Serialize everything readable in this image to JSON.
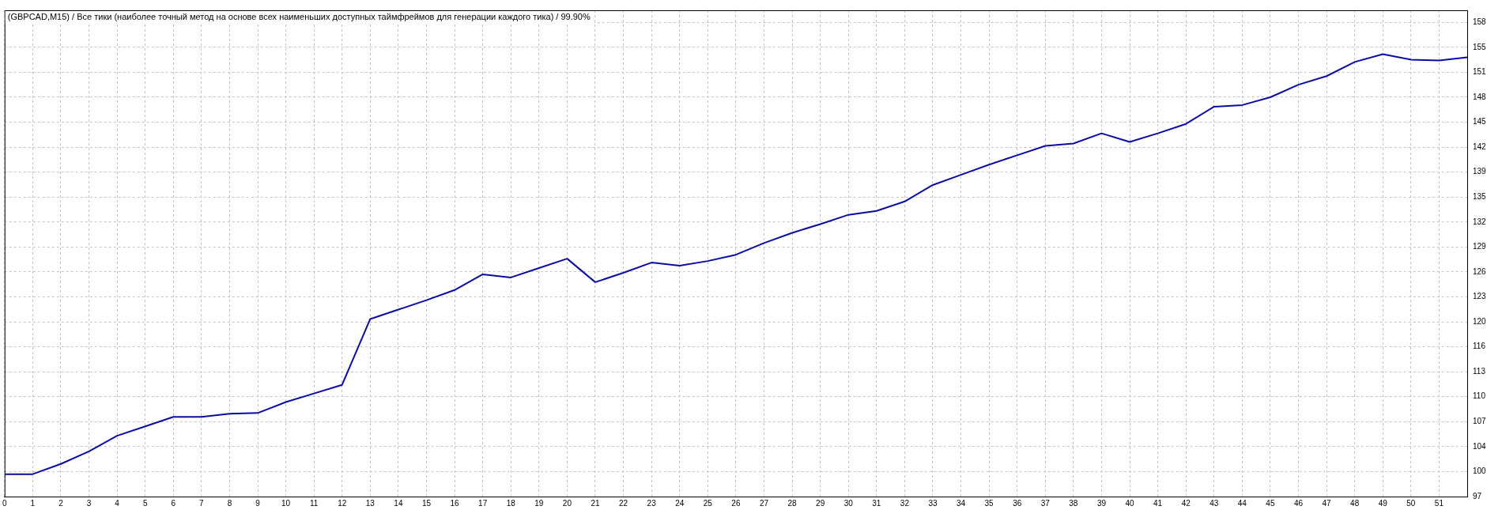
{
  "chart_data": {
    "type": "line",
    "title": "(GBPCAD,M15) / Все тики (наиболее точный метод на основе всех наименьших доступных таймфреймов для генерации каждого тика) / 99.90%",
    "x": [
      0,
      1,
      2,
      3,
      4,
      5,
      6,
      7,
      8,
      9,
      10,
      11,
      12,
      13,
      14,
      15,
      16,
      17,
      18,
      19,
      20,
      21,
      22,
      23,
      24,
      25,
      26,
      27,
      28,
      29,
      30,
      31,
      32,
      33,
      34,
      35,
      36,
      37,
      38,
      39,
      40,
      41,
      42,
      43,
      44,
      45,
      46,
      47,
      48,
      49,
      50,
      51,
      52
    ],
    "values": [
      100.1,
      100.1,
      101.4,
      103.0,
      105.0,
      106.2,
      107.4,
      107.4,
      107.8,
      107.9,
      109.3,
      110.4,
      111.5,
      119.9,
      121.1,
      122.3,
      123.6,
      125.6,
      125.2,
      126.4,
      127.6,
      124.6,
      125.8,
      127.1,
      126.7,
      127.3,
      128.1,
      129.6,
      130.9,
      132.0,
      133.2,
      133.7,
      134.9,
      137.0,
      138.3,
      139.6,
      140.8,
      142.0,
      142.3,
      143.6,
      142.5,
      143.6,
      144.8,
      147.0,
      147.2,
      148.2,
      149.8,
      150.9,
      152.7,
      153.7,
      153.0,
      152.9,
      153.3
    ],
    "color": "#0a0aa8",
    "xlim": [
      0,
      52
    ],
    "xticks": [
      0,
      1,
      2,
      3,
      4,
      5,
      6,
      7,
      8,
      9,
      10,
      11,
      12,
      13,
      14,
      15,
      16,
      17,
      18,
      19,
      20,
      21,
      22,
      23,
      24,
      25,
      26,
      27,
      28,
      29,
      30,
      31,
      32,
      33,
      34,
      35,
      36,
      37,
      38,
      39,
      40,
      41,
      42,
      43,
      44,
      45,
      46,
      47,
      48,
      49,
      50,
      51
    ],
    "ylim": [
      97.24,
      159.3
    ],
    "yticks": [
      {
        "value": 97.24,
        "label": "97"
      },
      {
        "value": 100.43,
        "label": "100"
      },
      {
        "value": 103.61,
        "label": "104"
      },
      {
        "value": 106.8,
        "label": "107"
      },
      {
        "value": 109.98,
        "label": "110"
      },
      {
        "value": 113.17,
        "label": "113"
      },
      {
        "value": 116.35,
        "label": "116"
      },
      {
        "value": 119.54,
        "label": "120"
      },
      {
        "value": 122.72,
        "label": "123"
      },
      {
        "value": 125.91,
        "label": "126"
      },
      {
        "value": 129.09,
        "label": "129"
      },
      {
        "value": 132.28,
        "label": "132"
      },
      {
        "value": 135.46,
        "label": "135"
      },
      {
        "value": 138.65,
        "label": "139"
      },
      {
        "value": 141.83,
        "label": "142"
      },
      {
        "value": 145.02,
        "label": "145"
      },
      {
        "value": 148.2,
        "label": "148"
      },
      {
        "value": 151.39,
        "label": "151"
      },
      {
        "value": 154.57,
        "label": "155"
      },
      {
        "value": 157.76,
        "label": "158"
      }
    ],
    "grid": true
  }
}
